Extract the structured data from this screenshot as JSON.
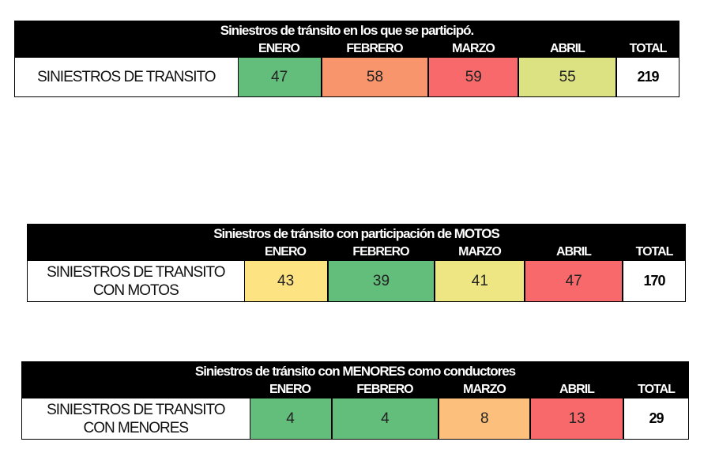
{
  "tables": [
    {
      "title": "Siniestros de tránsito en los que se participó.",
      "headers": [
        "ENERO",
        "FEBRERO",
        "MARZO",
        "ABRIL",
        "TOTAL"
      ],
      "row_label": "SINIESTROS DE TRANSITO",
      "values": [
        "47",
        "58",
        "59",
        "55"
      ],
      "total": "219",
      "colors": [
        "#63be7b",
        "#f9956d",
        "#f8696b",
        "#dce182"
      ]
    },
    {
      "title": "Siniestros de tránsito con participación de MOTOS",
      "headers": [
        "ENERO",
        "FEBRERO",
        "MARZO",
        "ABRIL",
        "TOTAL"
      ],
      "row_label_line1": "SINIESTROS DE TRANSITO",
      "row_label_line2": "CON MOTOS",
      "values": [
        "43",
        "39",
        "41",
        "47"
      ],
      "total": "170",
      "colors": [
        "#fee382",
        "#63be7b",
        "#ede683",
        "#f8696b"
      ]
    },
    {
      "title": "Siniestros de tránsito con MENORES como conductores",
      "headers": [
        "ENERO",
        "FEBRERO",
        "MARZO",
        "ABRIL",
        "TOTAL"
      ],
      "row_label_line1": "SINIESTROS DE TRANSITO",
      "row_label_line2": "CON MENORES",
      "values": [
        "4",
        "4",
        "8",
        "13"
      ],
      "total": "29",
      "colors": [
        "#63be7b",
        "#63be7b",
        "#fdc07c",
        "#f8696b"
      ]
    }
  ]
}
